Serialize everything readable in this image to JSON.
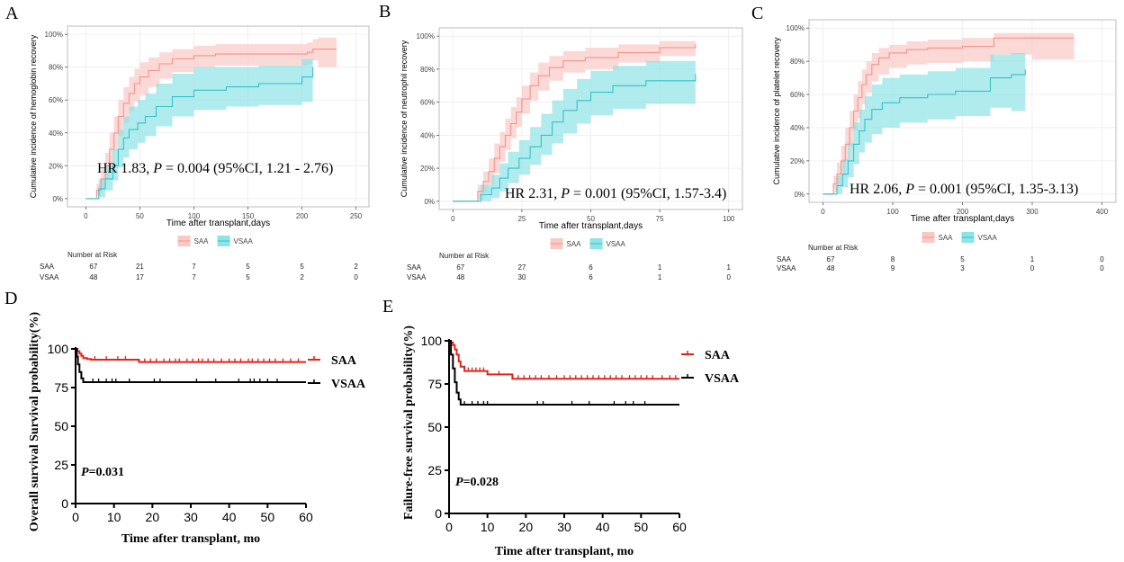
{
  "panel_letters": {
    "A": "A",
    "B": "B",
    "C": "C",
    "D": "D",
    "E": "E"
  },
  "legend_labels": {
    "saa": "SAA",
    "vsaa": "VSAA"
  },
  "risk_title": "Number at Risk",
  "colors": {
    "saa_line": "#F4938C",
    "saa_fill": "#FAC9C4",
    "vsaa_line": "#35C2C8",
    "vsaa_fill": "#8EE3E6",
    "km_saa": "#E3231B",
    "km_vsaa": "#000000",
    "panel_bg": "#ffffff",
    "grid": "#ececec",
    "border": "#bdbdbd"
  },
  "chart_data": [
    {
      "id": "A",
      "type": "line",
      "xlabel": "Time after transplant,days",
      "ylabel": "Cumulative incidence of hemoglobin recovery",
      "xlim": [
        -17,
        262
      ],
      "ylim": [
        -5,
        105
      ],
      "xticks": [
        0,
        50,
        100,
        150,
        200,
        250
      ],
      "yticks": [
        0,
        20,
        40,
        60,
        80,
        100
      ],
      "ytick_labels": [
        "0%",
        "20%",
        "40%",
        "60%",
        "80%",
        "100%"
      ],
      "annotation": {
        "hr": "HR 1.83,",
        "p_label": "P",
        "p_rest": " = 0.004 (95%CI, 1.21 - 2.76)"
      },
      "series": [
        {
          "name": "SAA",
          "step_x": [
            0,
            10,
            14,
            18,
            22,
            26,
            30,
            35,
            40,
            45,
            50,
            58,
            68,
            80,
            100,
            120,
            160,
            205,
            210,
            215,
            232
          ],
          "values": [
            0,
            5,
            12,
            20,
            30,
            40,
            50,
            58,
            64,
            70,
            74,
            78,
            82,
            85,
            87,
            88,
            88,
            89,
            91,
            91,
            91
          ],
          "lower": [
            0,
            2,
            6,
            12,
            20,
            29,
            38,
            46,
            53,
            59,
            63,
            68,
            73,
            77,
            80,
            81,
            81,
            82,
            84,
            80,
            80
          ],
          "upper": [
            0,
            9,
            18,
            28,
            40,
            50,
            60,
            68,
            74,
            79,
            83,
            86,
            89,
            91,
            93,
            94,
            94,
            95,
            97,
            98,
            98
          ]
        },
        {
          "name": "VSAA",
          "step_x": [
            0,
            12,
            18,
            25,
            30,
            35,
            40,
            48,
            55,
            65,
            80,
            100,
            130,
            160,
            200,
            210
          ],
          "values": [
            0,
            6,
            12,
            20,
            30,
            37,
            42,
            46,
            50,
            56,
            62,
            66,
            68,
            70,
            74,
            80
          ],
          "lower": [
            0,
            1,
            5,
            11,
            19,
            25,
            30,
            34,
            38,
            44,
            50,
            54,
            56,
            57,
            59,
            66
          ],
          "upper": [
            0,
            12,
            20,
            30,
            42,
            50,
            56,
            60,
            64,
            70,
            76,
            80,
            80,
            81,
            85,
            91
          ]
        }
      ],
      "risk_ticks": [
        0,
        50,
        100,
        150,
        200,
        250
      ],
      "risk": {
        "SAA": [
          "67",
          "21",
          "7",
          "5",
          "5",
          "2"
        ],
        "VSAA": [
          "48",
          "17",
          "7",
          "5",
          "2",
          "0"
        ]
      }
    },
    {
      "id": "B",
      "type": "line",
      "xlabel": "Time after transplant,days",
      "ylabel": "Cumulative incidence of neutrophil recovery",
      "xlim": [
        -5,
        105
      ],
      "ylim": [
        -5,
        105
      ],
      "xticks": [
        0,
        25,
        50,
        75,
        100
      ],
      "yticks": [
        0,
        20,
        40,
        60,
        80,
        100
      ],
      "ytick_labels": [
        "0%",
        "20%",
        "40%",
        "60%",
        "80%",
        "100%"
      ],
      "annotation": {
        "hr": "HR 2.31,",
        "p_label": "P",
        "p_rest": " = 0.001 (95%CI, 1.57-3.4)"
      },
      "series": [
        {
          "name": "SAA",
          "step_x": [
            0,
            9,
            11,
            13,
            15,
            17,
            19,
            21,
            23,
            25,
            28,
            31,
            35,
            40,
            48,
            60,
            75,
            88
          ],
          "values": [
            0,
            6,
            12,
            18,
            26,
            33,
            40,
            47,
            54,
            62,
            70,
            76,
            81,
            85,
            87,
            90,
            93,
            95
          ],
          "lower": [
            0,
            1,
            5,
            10,
            17,
            24,
            31,
            38,
            45,
            53,
            61,
            67,
            73,
            78,
            80,
            84,
            88,
            90
          ],
          "upper": [
            0,
            10,
            18,
            26,
            35,
            42,
            50,
            57,
            63,
            70,
            78,
            84,
            88,
            91,
            93,
            95,
            97,
            99
          ]
        },
        {
          "name": "VSAA",
          "step_x": [
            0,
            10,
            14,
            17,
            20,
            24,
            28,
            32,
            36,
            40,
            45,
            50,
            58,
            70,
            88
          ],
          "values": [
            0,
            4,
            8,
            14,
            20,
            26,
            33,
            40,
            48,
            55,
            61,
            66,
            70,
            73,
            77
          ],
          "lower": [
            0,
            0,
            2,
            6,
            11,
            16,
            22,
            28,
            35,
            41,
            47,
            52,
            56,
            59,
            60
          ],
          "upper": [
            0,
            10,
            16,
            23,
            30,
            37,
            45,
            53,
            61,
            68,
            74,
            79,
            82,
            85,
            86
          ]
        }
      ],
      "risk_ticks": [
        0,
        25,
        50,
        75,
        100
      ],
      "risk": {
        "SAA": [
          "67",
          "27",
          "6",
          "1",
          "1"
        ],
        "VSAA": [
          "48",
          "30",
          "6",
          "1",
          "0"
        ]
      }
    },
    {
      "id": "C",
      "type": "line",
      "xlabel": "Time after transplant,days",
      "ylabel": "Cumulative incidence of platelet recovery",
      "xlim": [
        -20,
        420
      ],
      "ylim": [
        -5,
        105
      ],
      "xticks": [
        0,
        100,
        200,
        300,
        400
      ],
      "yticks": [
        0,
        20,
        40,
        60,
        80,
        100
      ],
      "ytick_labels": [
        "0%",
        "20%",
        "40%",
        "60%",
        "80%",
        "100%"
      ],
      "annotation": {
        "hr": "HR 2.06,",
        "p_label": "P",
        "p_rest": " = 0.001 (95%CI, 1.35-3.13)"
      },
      "series": [
        {
          "name": "SAA",
          "step_x": [
            0,
            15,
            20,
            26,
            32,
            38,
            44,
            50,
            56,
            62,
            70,
            80,
            95,
            120,
            150,
            200,
            245,
            300,
            360
          ],
          "values": [
            0,
            6,
            12,
            20,
            30,
            40,
            50,
            58,
            66,
            72,
            78,
            82,
            85,
            87,
            88,
            89,
            94,
            94,
            94
          ],
          "lower": [
            0,
            1,
            5,
            11,
            20,
            29,
            38,
            46,
            54,
            61,
            68,
            72,
            76,
            78,
            79,
            80,
            84,
            81,
            81
          ],
          "upper": [
            0,
            11,
            19,
            29,
            40,
            50,
            60,
            68,
            75,
            80,
            85,
            88,
            90,
            92,
            93,
            94,
            97,
            97,
            97
          ]
        },
        {
          "name": "VSAA",
          "step_x": [
            0,
            20,
            28,
            36,
            44,
            52,
            60,
            70,
            85,
            110,
            150,
            190,
            240,
            270,
            290
          ],
          "values": [
            0,
            5,
            12,
            20,
            30,
            38,
            45,
            51,
            55,
            58,
            60,
            62,
            70,
            72,
            75
          ],
          "lower": [
            0,
            0,
            4,
            10,
            18,
            25,
            31,
            36,
            40,
            43,
            45,
            47,
            52,
            50,
            50
          ],
          "upper": [
            0,
            11,
            21,
            31,
            43,
            51,
            59,
            66,
            70,
            72,
            74,
            76,
            84,
            85,
            86
          ]
        }
      ],
      "risk_ticks": [
        0,
        100,
        200,
        300,
        400
      ],
      "risk": {
        "SAA": [
          "67",
          "8",
          "5",
          "1",
          "0"
        ],
        "VSAA": [
          "48",
          "9",
          "3",
          "0",
          "0"
        ]
      }
    },
    {
      "id": "D",
      "type": "line",
      "xlabel": "Time after transplant, mo",
      "ylabel": "Overall survival Survival probability(%)",
      "xlim": [
        0,
        60
      ],
      "ylim": [
        0,
        100
      ],
      "xticks": [
        0,
        10,
        20,
        30,
        40,
        50,
        60
      ],
      "yticks": [
        0,
        25,
        50,
        75,
        100
      ],
      "annotation": {
        "p_label": "P",
        "p_rest": "=0.031"
      },
      "series": [
        {
          "name": "SAA",
          "step_x": [
            0,
            0.5,
            1,
            1.5,
            2,
            3,
            4,
            16.5,
            60
          ],
          "values": [
            100,
            98.5,
            97,
            95.5,
            94,
            93.5,
            93,
            91.5,
            91.5
          ],
          "censor": [
            5,
            8,
            11,
            13,
            18,
            19.5,
            21,
            23,
            24.5,
            26,
            27,
            29,
            30.5,
            32,
            33,
            34.5,
            36,
            38,
            40,
            41.5,
            43,
            45,
            46,
            47.5,
            49,
            50.5,
            52,
            54,
            56,
            58
          ]
        },
        {
          "name": "VSAA",
          "step_x": [
            0,
            0.3,
            0.6,
            1,
            1.5,
            2,
            60
          ],
          "values": [
            100,
            95,
            90,
            85,
            81,
            78.5,
            78.5
          ],
          "censor": [
            4.5,
            6,
            8,
            9.5,
            10.5,
            14,
            20.5,
            22,
            31.5,
            36.5,
            42.5,
            45.5,
            46.5,
            48,
            50,
            52.5
          ]
        }
      ]
    },
    {
      "id": "E",
      "type": "line",
      "xlabel": "Time after transplant, mo",
      "ylabel": "Failure-free survival probability(%)",
      "xlim": [
        0,
        60
      ],
      "ylim": [
        0,
        100
      ],
      "xticks": [
        0,
        10,
        20,
        30,
        40,
        50,
        60
      ],
      "yticks": [
        0,
        25,
        50,
        75,
        100
      ],
      "annotation": {
        "p_label": "P",
        "p_rest": "=0.028"
      },
      "series": [
        {
          "name": "SAA",
          "step_x": [
            0,
            0.5,
            1,
            1.5,
            2,
            2.5,
            3,
            4,
            10,
            16.5,
            60
          ],
          "values": [
            100,
            99,
            97.5,
            95,
            92,
            88,
            85,
            82.5,
            80.5,
            78,
            78
          ],
          "censor": [
            5,
            6,
            7,
            8,
            9,
            13,
            18,
            19.5,
            21,
            22.5,
            24,
            26,
            28,
            30,
            31.5,
            33,
            34.5,
            36,
            37.5,
            39,
            40.5,
            42,
            43.5,
            45,
            47,
            48.5,
            50,
            51.5,
            53,
            55.5,
            57.5,
            59
          ]
        },
        {
          "name": "VSAA",
          "step_x": [
            0,
            0.5,
            1,
            1.5,
            2,
            2.5,
            3,
            60
          ],
          "values": [
            100,
            92,
            84,
            76,
            70,
            66,
            63,
            63
          ],
          "censor": [
            4,
            6,
            7.5,
            9,
            10,
            23,
            24.5,
            32,
            36.5,
            43,
            46,
            48,
            51
          ]
        }
      ]
    }
  ]
}
